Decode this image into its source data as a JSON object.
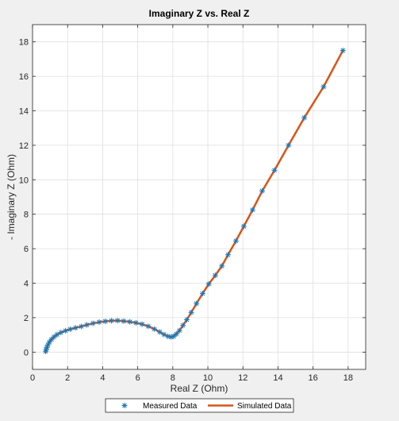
{
  "chart_data": {
    "type": "scatter",
    "title": "Imaginary Z vs. Real Z",
    "xlabel": "Real Z (Ohm)",
    "ylabel": "- Imaginary Z (Ohm)",
    "xlim": [
      0,
      19
    ],
    "ylim": [
      -1,
      19
    ],
    "xticks": [
      0,
      2,
      4,
      6,
      8,
      10,
      12,
      14,
      16,
      18
    ],
    "yticks": [
      0,
      2,
      4,
      6,
      8,
      10,
      12,
      14,
      16,
      18
    ],
    "grid": true,
    "legend_position": "bottom-outside",
    "series": [
      {
        "name": "Measured Data",
        "kind": "markers",
        "marker": "asterisk",
        "color": "#1f77b4",
        "points": [
          [
            0.75,
            0.05
          ],
          [
            0.78,
            0.15
          ],
          [
            0.82,
            0.28
          ],
          [
            0.88,
            0.42
          ],
          [
            0.96,
            0.58
          ],
          [
            1.08,
            0.74
          ],
          [
            1.22,
            0.88
          ],
          [
            1.4,
            1.02
          ],
          [
            1.62,
            1.14
          ],
          [
            1.88,
            1.24
          ],
          [
            2.15,
            1.33
          ],
          [
            2.45,
            1.41
          ],
          [
            2.78,
            1.49
          ],
          [
            3.1,
            1.58
          ],
          [
            3.45,
            1.67
          ],
          [
            3.8,
            1.74
          ],
          [
            4.15,
            1.79
          ],
          [
            4.5,
            1.82
          ],
          [
            4.85,
            1.83
          ],
          [
            5.2,
            1.8
          ],
          [
            5.55,
            1.76
          ],
          [
            5.9,
            1.7
          ],
          [
            6.25,
            1.62
          ],
          [
            6.6,
            1.5
          ],
          [
            6.95,
            1.34
          ],
          [
            7.25,
            1.17
          ],
          [
            7.5,
            1.02
          ],
          [
            7.72,
            0.92
          ],
          [
            7.9,
            0.88
          ],
          [
            8.05,
            0.92
          ],
          [
            8.2,
            1.05
          ],
          [
            8.38,
            1.25
          ],
          [
            8.58,
            1.55
          ],
          [
            8.8,
            1.88
          ],
          [
            9.05,
            2.3
          ],
          [
            9.35,
            2.82
          ],
          [
            9.7,
            3.4
          ],
          [
            10.05,
            3.95
          ],
          [
            10.42,
            4.45
          ],
          [
            10.8,
            5.0
          ],
          [
            11.15,
            5.65
          ],
          [
            11.6,
            6.45
          ],
          [
            12.05,
            7.3
          ],
          [
            12.55,
            8.25
          ],
          [
            13.1,
            9.35
          ],
          [
            13.8,
            10.55
          ],
          [
            14.6,
            12.0
          ],
          [
            15.5,
            13.6
          ],
          [
            16.6,
            15.4
          ],
          [
            17.7,
            17.5
          ]
        ]
      },
      {
        "name": "Simulated Data",
        "kind": "line",
        "color": "#d95319",
        "points": [
          [
            0.74,
            0.0
          ],
          [
            0.78,
            0.15
          ],
          [
            0.82,
            0.28
          ],
          [
            0.88,
            0.42
          ],
          [
            0.96,
            0.58
          ],
          [
            1.08,
            0.74
          ],
          [
            1.22,
            0.88
          ],
          [
            1.4,
            1.02
          ],
          [
            1.62,
            1.14
          ],
          [
            1.88,
            1.24
          ],
          [
            2.15,
            1.33
          ],
          [
            2.45,
            1.41
          ],
          [
            2.78,
            1.49
          ],
          [
            3.1,
            1.58
          ],
          [
            3.45,
            1.67
          ],
          [
            3.8,
            1.74
          ],
          [
            4.15,
            1.79
          ],
          [
            4.5,
            1.82
          ],
          [
            4.85,
            1.83
          ],
          [
            5.2,
            1.8
          ],
          [
            5.55,
            1.76
          ],
          [
            5.9,
            1.7
          ],
          [
            6.25,
            1.62
          ],
          [
            6.6,
            1.5
          ],
          [
            6.95,
            1.34
          ],
          [
            7.25,
            1.17
          ],
          [
            7.5,
            1.02
          ],
          [
            7.72,
            0.92
          ],
          [
            7.9,
            0.88
          ],
          [
            8.05,
            0.92
          ],
          [
            8.2,
            1.05
          ],
          [
            8.38,
            1.25
          ],
          [
            8.58,
            1.55
          ],
          [
            8.8,
            1.88
          ],
          [
            9.05,
            2.3
          ],
          [
            9.35,
            2.82
          ],
          [
            9.7,
            3.4
          ],
          [
            10.05,
            3.95
          ],
          [
            10.42,
            4.45
          ],
          [
            10.8,
            5.0
          ],
          [
            11.15,
            5.65
          ],
          [
            11.6,
            6.45
          ],
          [
            12.05,
            7.3
          ],
          [
            12.55,
            8.25
          ],
          [
            13.1,
            9.35
          ],
          [
            13.8,
            10.55
          ],
          [
            14.6,
            12.0
          ],
          [
            15.5,
            13.6
          ],
          [
            16.6,
            15.4
          ],
          [
            17.7,
            17.5
          ]
        ]
      }
    ]
  }
}
